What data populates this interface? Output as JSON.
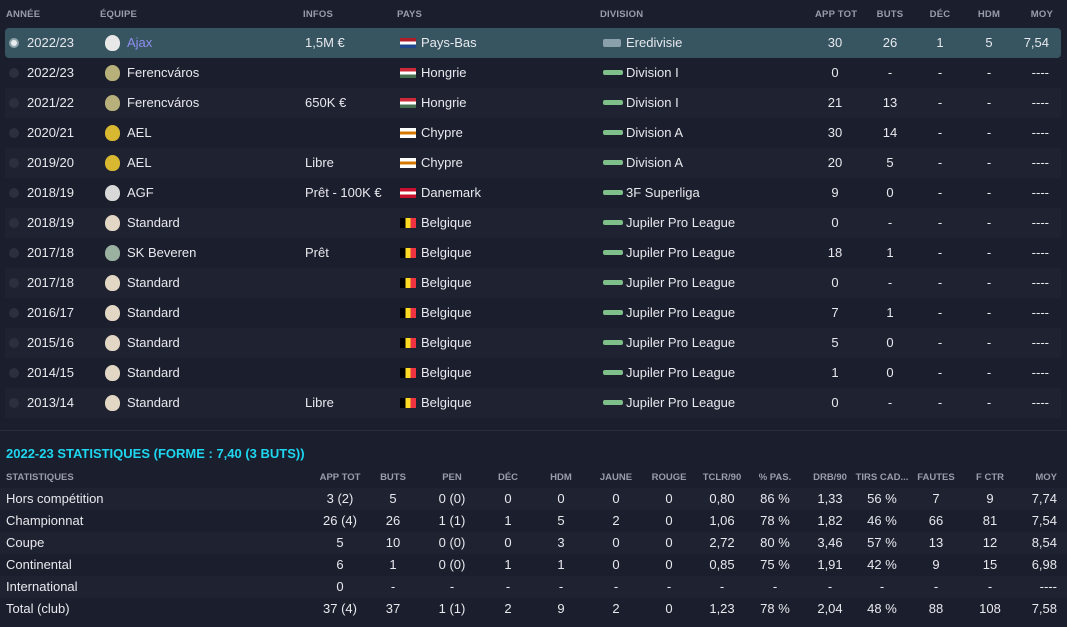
{
  "history": {
    "headers": [
      "ANNÉE",
      "ÉQUIPE",
      "INFOS",
      "PAYS",
      "DIVISION",
      "APP TOT",
      "BUTS",
      "DÉC",
      "HDM",
      "MOY"
    ],
    "rows": [
      {
        "year": "2022/23",
        "team": "Ajax",
        "infos": "1,5M €",
        "country": "Pays-Bas",
        "division": "Eredivisie",
        "app": "30",
        "goals": "26",
        "dec": "1",
        "hdm": "5",
        "moy": "7,54",
        "selected": true
      },
      {
        "year": "2022/23",
        "team": "Ferencváros",
        "infos": "",
        "country": "Hongrie",
        "division": "Division I",
        "app": "0",
        "goals": "-",
        "dec": "-",
        "hdm": "-",
        "moy": "----"
      },
      {
        "year": "2021/22",
        "team": "Ferencváros",
        "infos": "650K €",
        "country": "Hongrie",
        "division": "Division I",
        "app": "21",
        "goals": "13",
        "dec": "-",
        "hdm": "-",
        "moy": "----"
      },
      {
        "year": "2020/21",
        "team": "AEL",
        "infos": "",
        "country": "Chypre",
        "division": "Division A",
        "app": "30",
        "goals": "14",
        "dec": "-",
        "hdm": "-",
        "moy": "----"
      },
      {
        "year": "2019/20",
        "team": "AEL",
        "infos": "Libre",
        "country": "Chypre",
        "division": "Division A",
        "app": "20",
        "goals": "5",
        "dec": "-",
        "hdm": "-",
        "moy": "----"
      },
      {
        "year": "2018/19",
        "team": "AGF",
        "infos": "Prêt - 100K €",
        "country": "Danemark",
        "division": "3F Superliga",
        "app": "9",
        "goals": "0",
        "dec": "-",
        "hdm": "-",
        "moy": "----"
      },
      {
        "year": "2018/19",
        "team": "Standard",
        "infos": "",
        "country": "Belgique",
        "division": "Jupiler Pro League",
        "app": "0",
        "goals": "-",
        "dec": "-",
        "hdm": "-",
        "moy": "----"
      },
      {
        "year": "2017/18",
        "team": "SK Beveren",
        "infos": "Prêt",
        "country": "Belgique",
        "division": "Jupiler Pro League",
        "app": "18",
        "goals": "1",
        "dec": "-",
        "hdm": "-",
        "moy": "----"
      },
      {
        "year": "2017/18",
        "team": "Standard",
        "infos": "",
        "country": "Belgique",
        "division": "Jupiler Pro League",
        "app": "0",
        "goals": "-",
        "dec": "-",
        "hdm": "-",
        "moy": "----"
      },
      {
        "year": "2016/17",
        "team": "Standard",
        "infos": "",
        "country": "Belgique",
        "division": "Jupiler Pro League",
        "app": "7",
        "goals": "1",
        "dec": "-",
        "hdm": "-",
        "moy": "----"
      },
      {
        "year": "2015/16",
        "team": "Standard",
        "infos": "",
        "country": "Belgique",
        "division": "Jupiler Pro League",
        "app": "5",
        "goals": "0",
        "dec": "-",
        "hdm": "-",
        "moy": "----"
      },
      {
        "year": "2014/15",
        "team": "Standard",
        "infos": "",
        "country": "Belgique",
        "division": "Jupiler Pro League",
        "app": "1",
        "goals": "0",
        "dec": "-",
        "hdm": "-",
        "moy": "----"
      },
      {
        "year": "2013/14",
        "team": "Standard",
        "infos": "Libre",
        "country": "Belgique",
        "division": "Jupiler Pro League",
        "app": "0",
        "goals": "-",
        "dec": "-",
        "hdm": "-",
        "moy": "----"
      }
    ]
  },
  "stats": {
    "title": "2022-23 STATISTIQUES (FORME : 7,40 (3 BUTS))",
    "headers": [
      "STATISTIQUES",
      "APP TOT",
      "BUTS",
      "PEN",
      "DÉC",
      "HDM",
      "JAUNE",
      "ROUGE",
      "TCLR/90",
      "% PAS.",
      "DRB/90",
      "TIRS CAD...",
      "FAUTES",
      "F CTR",
      "MOY"
    ],
    "rows": [
      [
        "Hors compétition",
        "3 (2)",
        "5",
        "0 (0)",
        "0",
        "0",
        "0",
        "0",
        "0,80",
        "86 %",
        "1,33",
        "56 %",
        "7",
        "9",
        "7,74"
      ],
      [
        "Championnat",
        "26 (4)",
        "26",
        "1 (1)",
        "1",
        "5",
        "2",
        "0",
        "1,06",
        "78 %",
        "1,82",
        "46 %",
        "66",
        "81",
        "7,54"
      ],
      [
        "Coupe",
        "5",
        "10",
        "0 (0)",
        "0",
        "3",
        "0",
        "0",
        "2,72",
        "80 %",
        "3,46",
        "57 %",
        "13",
        "12",
        "8,54"
      ],
      [
        "Continental",
        "6",
        "1",
        "0 (0)",
        "1",
        "1",
        "0",
        "0",
        "0,85",
        "75 %",
        "1,91",
        "42 %",
        "9",
        "15",
        "6,98"
      ],
      [
        "International",
        "0",
        "-",
        "-",
        "-",
        "-",
        "-",
        "-",
        "-",
        "-",
        "-",
        "-",
        "-",
        "-",
        "----"
      ],
      [
        "Total (club)",
        "37 (4)",
        "37",
        "1 (1)",
        "2",
        "9",
        "2",
        "0",
        "1,23",
        "78 %",
        "2,04",
        "48 %",
        "88",
        "108",
        "7,58"
      ]
    ]
  },
  "colors": {
    "accent": "#1ed6f0",
    "selected_row": "#365561",
    "link": "#8f8ff0"
  },
  "flags": {
    "Pays-Bas": [
      "#ae1c28",
      "#ffffff",
      "#21468b"
    ],
    "Hongrie": [
      "#ce2939",
      "#ffffff",
      "#477050"
    ],
    "Chypre": [
      "#ffffff",
      "#d57800",
      "#ffffff"
    ],
    "Danemark": [
      "#c8102e",
      "#ffffff",
      "#c8102e"
    ],
    "Belgique": [
      "#000000",
      "#fdda24",
      "#ef3340"
    ]
  },
  "crests": {
    "Ajax": "#e8e8e8",
    "Ferencváros": "#b8b07a",
    "AEL": "#d8b830",
    "AGF": "#d8d8d8",
    "Standard": "#e2d6c4",
    "SK Beveren": "#9ab0a0"
  }
}
